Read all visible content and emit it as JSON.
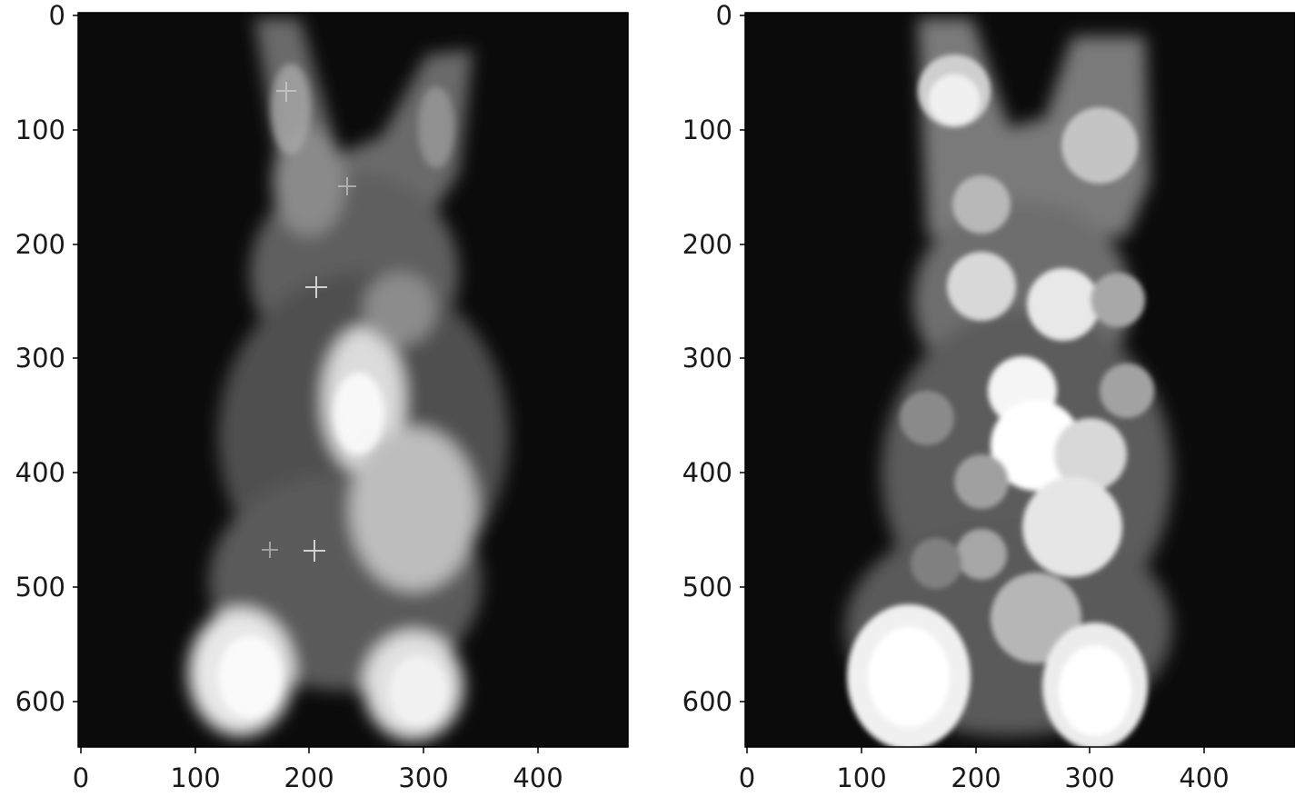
{
  "panels": [
    {
      "id": "left",
      "image_desc": "rabbit grayscale textured",
      "xticks": [
        "0",
        "100",
        "200",
        "300",
        "400"
      ],
      "yticks": [
        "0",
        "100",
        "200",
        "300",
        "400",
        "500",
        "600"
      ]
    },
    {
      "id": "right",
      "image_desc": "rabbit grayscale blurred blobs",
      "xticks": [
        "0",
        "100",
        "200",
        "300",
        "400"
      ],
      "yticks": [
        "0",
        "100",
        "200",
        "300",
        "400",
        "500",
        "600"
      ]
    }
  ],
  "colors": {
    "background": "#0b0b0b",
    "axis": "#000000",
    "text": "#1a1a1a"
  }
}
